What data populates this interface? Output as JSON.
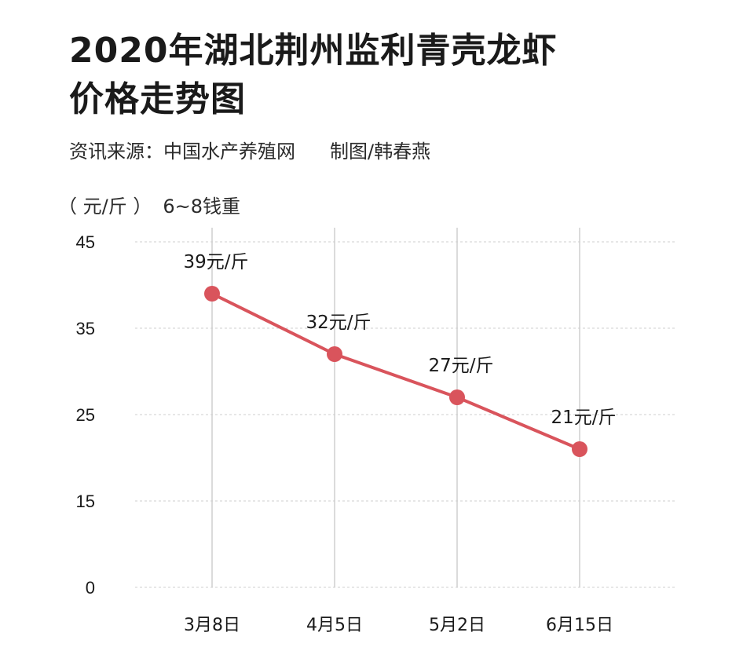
{
  "title_line1": "2020年湖北荆州监利青壳龙虾",
  "title_line2": "价格走势图",
  "source": "资讯来源：中国水产养殖网",
  "credit": "制图/韩春燕",
  "unit": "（ 元/斤 ）",
  "spec": "6~8钱重",
  "colors": {
    "line": "#d9545c",
    "grid": "#cfcfcf",
    "text": "#1a1a1a"
  },
  "chart_data": {
    "type": "line",
    "title": "2020年湖北荆州监利青壳龙虾价格走势图",
    "ylabel": "（ 元/斤 ）",
    "categories": [
      "3月8日",
      "4月5日",
      "5月2日",
      "6月15日"
    ],
    "values": [
      39,
      32,
      27,
      21
    ],
    "data_labels": [
      "39元/斤",
      "32元/斤",
      "27元/斤",
      "21元/斤"
    ],
    "yticks": [
      0,
      15,
      25,
      35,
      45
    ],
    "ylim": [
      0,
      45
    ],
    "grid": true,
    "marker": "circle"
  }
}
